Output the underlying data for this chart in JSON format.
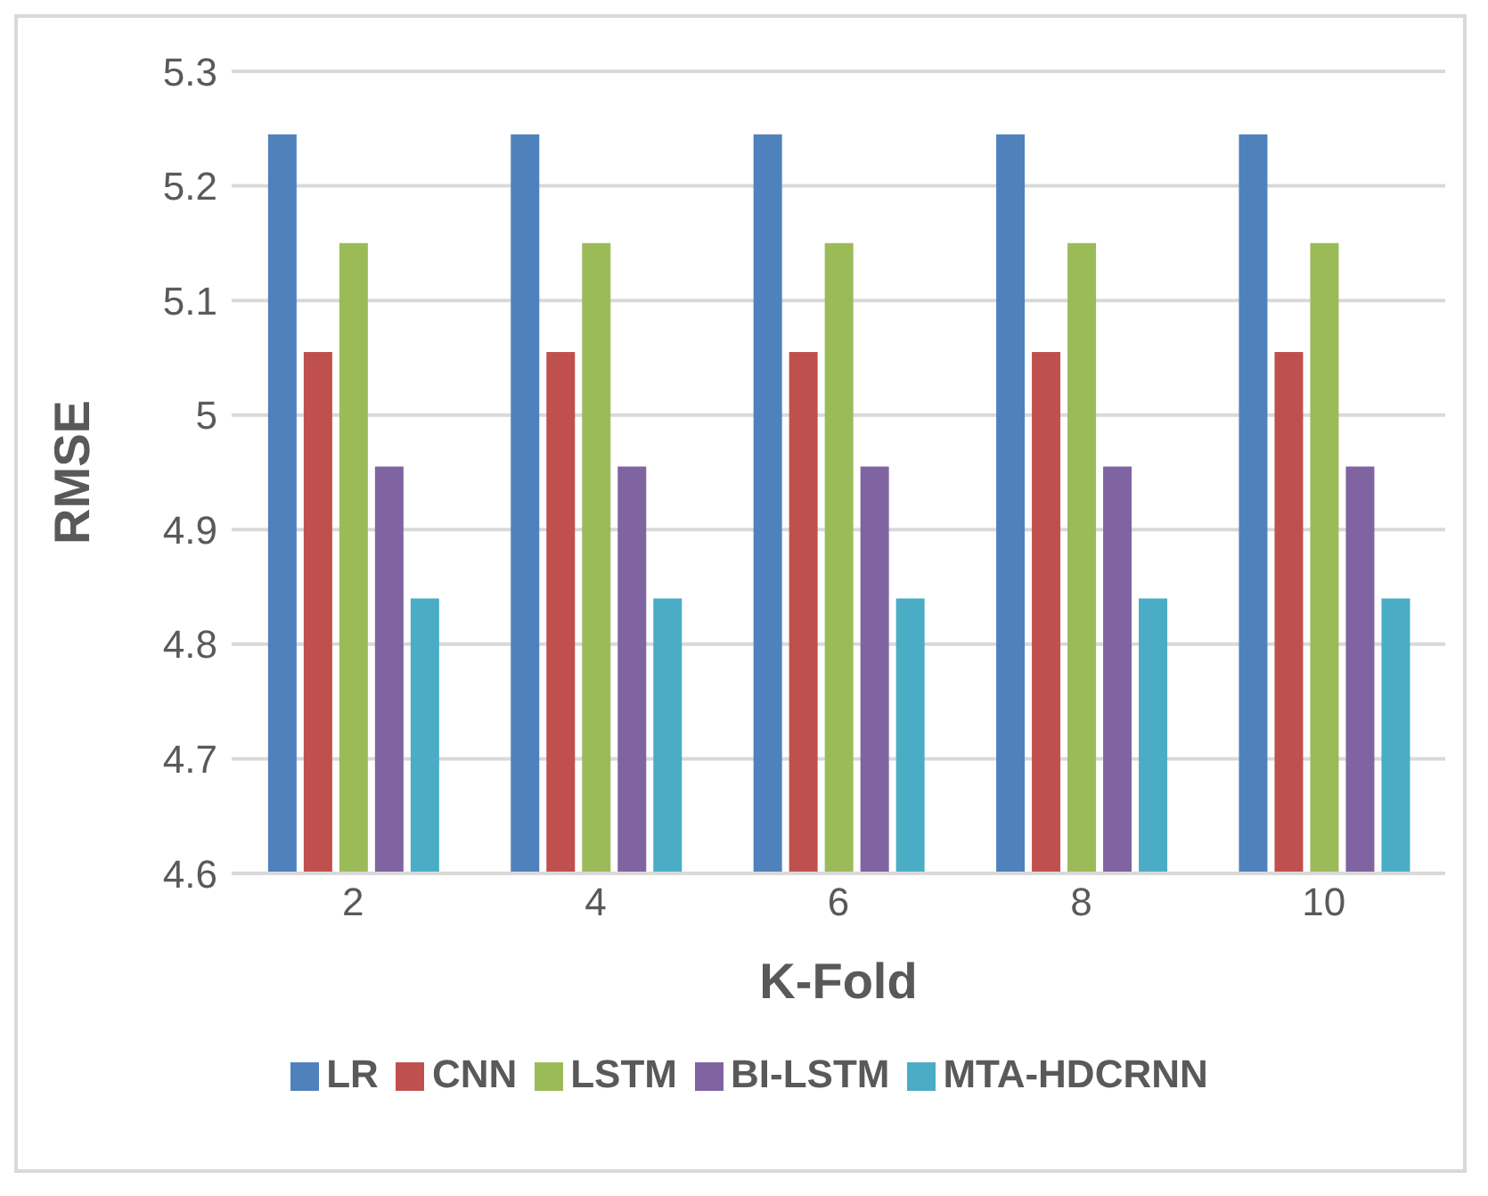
{
  "chart_data": {
    "type": "bar",
    "xlabel": "K-Fold",
    "ylabel": "RMSE",
    "categories": [
      "2",
      "4",
      "6",
      "8",
      "10"
    ],
    "series": [
      {
        "name": "LR",
        "color": "#4f81bd",
        "values": [
          5.245,
          5.245,
          5.245,
          5.245,
          5.245
        ]
      },
      {
        "name": "CNN",
        "color": "#c0504d",
        "values": [
          5.055,
          5.055,
          5.055,
          5.055,
          5.055
        ]
      },
      {
        "name": "LSTM",
        "color": "#9bbb59",
        "values": [
          5.15,
          5.15,
          5.15,
          5.15,
          5.15
        ]
      },
      {
        "name": "BI-LSTM",
        "color": "#8064a2",
        "values": [
          4.955,
          4.955,
          4.955,
          4.955,
          4.955
        ]
      },
      {
        "name": "MTA-HDCRNN",
        "color": "#4bacc6",
        "values": [
          4.84,
          4.84,
          4.84,
          4.84,
          4.84
        ]
      }
    ],
    "ylim": [
      4.6,
      5.3
    ],
    "yticks": [
      4.6,
      4.7,
      4.8,
      4.9,
      5,
      5.1,
      5.2,
      5.3
    ],
    "grid": "y",
    "legend": "bottom"
  }
}
